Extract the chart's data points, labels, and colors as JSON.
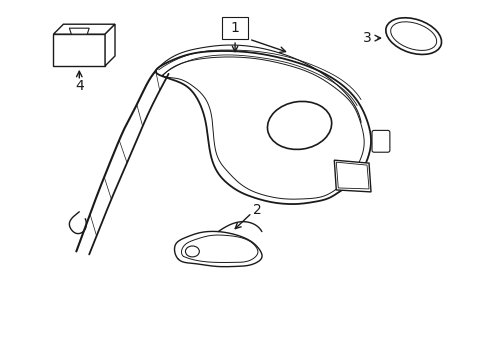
{
  "background_color": "#ffffff",
  "line_color": "#1a1a1a",
  "line_width": 1.0,
  "figsize": [
    4.89,
    3.6
  ],
  "dpi": 100,
  "font_size": 10
}
